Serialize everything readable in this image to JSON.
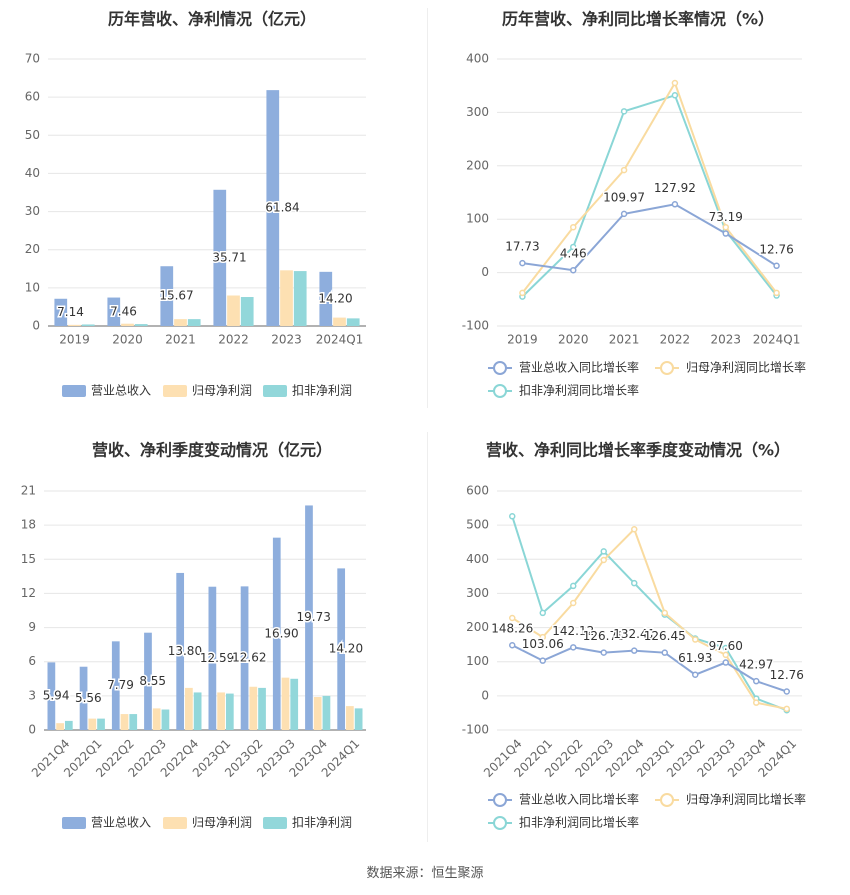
{
  "source_label": "数据来源：恒生聚源",
  "legend_labels": {
    "bar": [
      "营业总收入",
      "归母净利润",
      "扣非净利润"
    ],
    "line": [
      "营业总收入同比增长率",
      "归母净利润同比增长率",
      "扣非净利润同比增长率"
    ]
  },
  "colors": {
    "revenue": "#8eaedd",
    "net_profit": "#fde0b2",
    "deducted_profit": "#92d7da",
    "line_revenue": "#8ba6d6",
    "line_net": "#f9dba0",
    "line_deducted": "#8ad6d6"
  },
  "chart_data": [
    {
      "type": "bar",
      "title": "历年营收、净利情况（亿元）",
      "categories": [
        "2019",
        "2020",
        "2021",
        "2022",
        "2023",
        "2024Q1"
      ],
      "ylim": [
        0,
        70
      ],
      "yticks": [
        0,
        10,
        20,
        30,
        40,
        50,
        60,
        70
      ],
      "series": [
        {
          "name": "营业总收入",
          "values": [
            7.14,
            7.46,
            15.67,
            35.71,
            61.84,
            14.2
          ]
        },
        {
          "name": "归母净利润",
          "values": [
            0.3,
            0.6,
            1.8,
            8.0,
            14.6,
            2.2
          ]
        },
        {
          "name": "扣非净利润",
          "values": [
            0.4,
            0.5,
            1.8,
            7.6,
            14.4,
            2.0
          ]
        }
      ],
      "data_labels": [
        "7.14",
        "7.46",
        "15.67",
        "35.71",
        "61.84",
        "14.20"
      ],
      "legend": "bottom",
      "grid": true
    },
    {
      "type": "line",
      "title": "历年营收、净利同比增长率情况（%）",
      "categories": [
        "2019",
        "2020",
        "2021",
        "2022",
        "2023",
        "2024Q1"
      ],
      "ylim": [
        -100,
        400
      ],
      "yticks": [
        -100,
        0,
        100,
        200,
        300,
        400
      ],
      "series": [
        {
          "name": "营业总收入同比增长率",
          "values": [
            17.73,
            4.46,
            109.97,
            127.92,
            73.19,
            12.76
          ]
        },
        {
          "name": "归母净利润同比增长率",
          "values": [
            -38,
            85,
            192,
            355,
            85,
            -38
          ]
        },
        {
          "name": "扣非净利润同比增长率",
          "values": [
            -45,
            48,
            302,
            332,
            78,
            -43
          ]
        }
      ],
      "data_labels": [
        "17.73",
        "4.46",
        "109.97",
        "127.92",
        "73.19",
        "12.76"
      ],
      "legend": "bottom",
      "grid": true
    },
    {
      "type": "bar",
      "title": "营收、净利季度变动情况（亿元）",
      "categories": [
        "2021Q4",
        "2022Q1",
        "2022Q2",
        "2022Q3",
        "2022Q4",
        "2023Q1",
        "2023Q2",
        "2023Q3",
        "2023Q4",
        "2024Q1"
      ],
      "ylim": [
        0,
        21
      ],
      "yticks": [
        0,
        3,
        6,
        9,
        12,
        15,
        18,
        21
      ],
      "series": [
        {
          "name": "营业总收入",
          "values": [
            5.94,
            5.56,
            7.79,
            8.55,
            13.8,
            12.59,
            12.62,
            16.9,
            19.73,
            14.2
          ]
        },
        {
          "name": "归母净利润",
          "values": [
            0.6,
            1.0,
            1.4,
            1.9,
            3.7,
            3.3,
            3.8,
            4.6,
            2.9,
            2.1
          ]
        },
        {
          "name": "扣非净利润",
          "values": [
            0.8,
            1.0,
            1.4,
            1.8,
            3.3,
            3.2,
            3.7,
            4.5,
            3.0,
            1.9
          ]
        }
      ],
      "data_labels": [
        "5.94",
        "5.56",
        "7.79",
        "8.55",
        "13.80",
        "12.59",
        "12.62",
        "16.90",
        "19.73",
        "14.20"
      ],
      "legend": "bottom",
      "grid": true
    },
    {
      "type": "line",
      "title": "营收、净利同比增长率季度变动情况（%）",
      "categories": [
        "2021Q4",
        "2022Q1",
        "2022Q2",
        "2022Q3",
        "2022Q4",
        "2023Q1",
        "2023Q2",
        "2023Q3",
        "2023Q4",
        "2024Q1"
      ],
      "ylim": [
        -100,
        600
      ],
      "yticks": [
        -100,
        0,
        100,
        200,
        300,
        400,
        500,
        600
      ],
      "series": [
        {
          "name": "营业总收入同比增长率",
          "values": [
            148.26,
            103.06,
            142.12,
            126.78,
            132.41,
            126.45,
            61.93,
            97.6,
            42.97,
            12.76
          ]
        },
        {
          "name": "归母净利润同比增长率",
          "values": [
            228,
            172,
            272,
            398,
            488,
            243,
            165,
            120,
            -20,
            -38
          ]
        },
        {
          "name": "扣非净利润同比增长率",
          "values": [
            526,
            243,
            322,
            423,
            330,
            238,
            168,
            140,
            -8,
            -42
          ]
        }
      ],
      "data_labels": [
        "148.26",
        "103.06",
        "142.12",
        "126.78",
        "132.41",
        "126.45",
        "61.93",
        "97.60",
        "42.97",
        "12.76"
      ],
      "legend": "bottom",
      "grid": true
    }
  ]
}
